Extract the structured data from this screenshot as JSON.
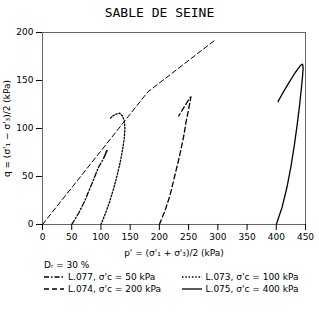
{
  "chart_data": {
    "type": "line",
    "title": "SABLE DE SEINE",
    "xlabel": "p' = (σ'₁ + σ'₃)/2 (kPa)",
    "ylabel": "q = (σ'₁ − σ'₃)/2 (kPa)",
    "xlim": [
      0,
      450
    ],
    "ylim": [
      0,
      200
    ],
    "xticks": [
      0,
      50,
      100,
      150,
      200,
      250,
      300,
      350,
      400,
      450
    ],
    "yticks": [
      0,
      50,
      100,
      150,
      200
    ],
    "grid": false,
    "legend": "bottom",
    "annotation": "Dᵣ = 30 %",
    "series": [
      {
        "line_style": "dashed",
        "x": [
          0,
          180,
          295
        ],
        "values": [
          0,
          138,
          192
        ]
      },
      {
        "name": "L.077,  σ'c = 50 kPa",
        "line_style": "dashdot",
        "x": [
          50,
          62,
          72,
          80,
          87,
          92,
          97,
          103,
          107,
          110,
          111,
          110,
          108,
          105
        ],
        "values": [
          0,
          12,
          24,
          36,
          46,
          54,
          61,
          67,
          72,
          76,
          78,
          77,
          74,
          70
        ]
      },
      {
        "name": "L.073,  σ'c = 100 kPa",
        "line_style": "dotted",
        "x": [
          100,
          108,
          115,
          122,
          128,
          133,
          137,
          140,
          141,
          140,
          137,
          132,
          126,
          120,
          115
        ],
        "values": [
          0,
          12,
          24,
          38,
          52,
          65,
          78,
          90,
          100,
          108,
          113,
          116,
          115,
          113,
          110
        ]
      },
      {
        "name": "L.074,  σ'c = 200 kPa",
        "line_style": "dashed",
        "x": [
          200,
          210,
          218,
          226,
          234,
          241,
          246,
          250,
          253,
          254,
          252,
          248,
          243,
          238,
          233
        ],
        "values": [
          0,
          15,
          30,
          50,
          70,
          90,
          108,
          120,
          130,
          133,
          132,
          128,
          123,
          118,
          113
        ]
      },
      {
        "name": "L.075,  σ'c = 400 kPa",
        "line_style": "solid",
        "x": [
          400,
          410,
          418,
          425,
          431,
          436,
          440,
          443,
          445,
          446,
          445,
          442,
          437,
          430,
          422,
          413,
          403
        ],
        "values": [
          0,
          18,
          38,
          60,
          83,
          105,
          125,
          142,
          155,
          163,
          167,
          166,
          162,
          156,
          148,
          139,
          128
        ]
      }
    ]
  }
}
